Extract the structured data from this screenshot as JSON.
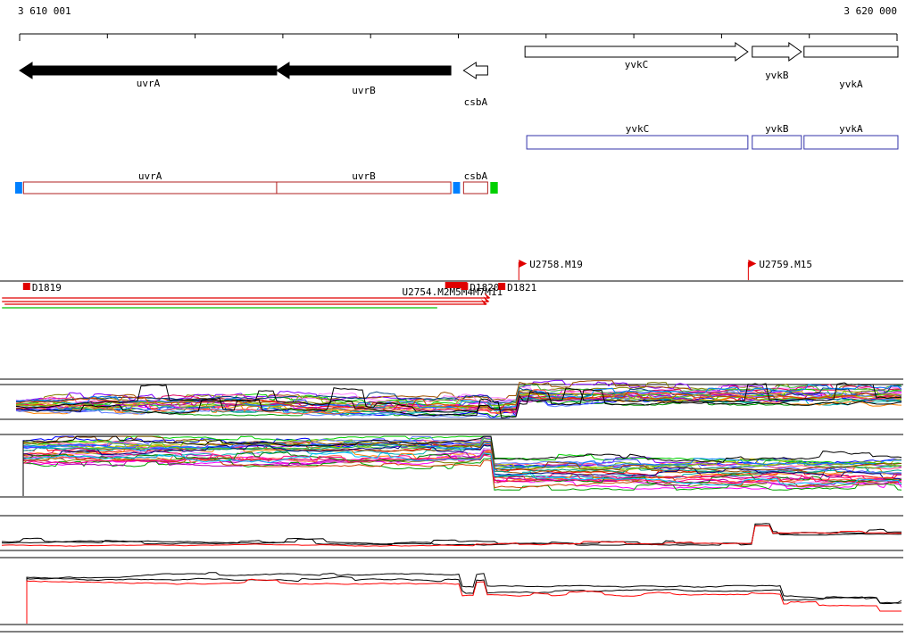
{
  "ruler": {
    "start_label": "3 610 001",
    "end_label": "3 620 000",
    "start_bp": 3610001,
    "end_bp": 3620000,
    "major_ticks": 11
  },
  "genes": [
    {
      "name": "uvrA",
      "start_bp": 3610001,
      "end_bp": 3612930,
      "strand": "-",
      "style": "filled-black",
      "label_dy": 9
    },
    {
      "name": "uvrB",
      "start_bp": 3612930,
      "end_bp": 3614915,
      "strand": "-",
      "style": "filled-black",
      "label_dy": 17
    },
    {
      "name": "csbA",
      "start_bp": 3615060,
      "end_bp": 3615335,
      "strand": "-",
      "style": "outline",
      "label_dy": 30
    },
    {
      "name": "yvkC",
      "start_bp": 3615760,
      "end_bp": 3618300,
      "strand": "+",
      "style": "outline",
      "label_dy": 8
    },
    {
      "name": "yvkB",
      "start_bp": 3618350,
      "end_bp": 3618910,
      "strand": "+",
      "style": "outline",
      "label_dy": 20
    },
    {
      "name": "yvkA",
      "start_bp": 3618940,
      "end_bp": 3620010,
      "strand": "+",
      "style": "outline-noarrow",
      "label_dy": 30
    }
  ],
  "transcripts": [
    {
      "name": "yvkC",
      "start_bp": 3615780,
      "end_bp": 3618300
    },
    {
      "name": "yvkB",
      "start_bp": 3618350,
      "end_bp": 3618910
    },
    {
      "name": "yvkA",
      "start_bp": 3618940,
      "end_bp": 3620010
    }
  ],
  "features": {
    "boxes": [
      {
        "name": "uvrA",
        "start_bp": 3610045,
        "end_bp": 3612930
      },
      {
        "name": "uvrB",
        "start_bp": 3612930,
        "end_bp": 3614915
      },
      {
        "name": "csbA",
        "start_bp": 3615060,
        "end_bp": 3615335
      }
    ],
    "caps": [
      {
        "color_key": "blue",
        "color": "#0080ff",
        "start_bp": 3609950,
        "end_bp": 3610030
      },
      {
        "color_key": "blue",
        "color": "#0080ff",
        "start_bp": 3614940,
        "end_bp": 3615020
      },
      {
        "color_key": "green",
        "color": "#00d000",
        "start_bp": 3615365,
        "end_bp": 3615450
      }
    ],
    "outline_color": "#b22222",
    "transcript_outline_color": "#3333aa"
  },
  "probes": [
    {
      "label": "D1819",
      "bp": 3610050,
      "kind": "box-below"
    },
    {
      "label": "U2754.M2M5M4M7M11",
      "bp": 3614360,
      "kind": "overlap-text",
      "marks_bp": [
        3614850,
        3614895,
        3614940,
        3614985,
        3615030
      ]
    },
    {
      "label": "D1820",
      "bp": 3615040,
      "kind": "box-below"
    },
    {
      "label": "D1821",
      "bp": 3615465,
      "kind": "box-below"
    },
    {
      "label": "U2758.M19",
      "bp": 3615690,
      "kind": "flag-above"
    },
    {
      "label": "U2759.M15",
      "bp": 3618305,
      "kind": "flag-above"
    }
  ],
  "amplicons": [
    {
      "start_bp": 3609800,
      "end_bp": 3615355,
      "color": "#e00000",
      "lane": 0,
      "end_marker": true
    },
    {
      "start_bp": 3609800,
      "end_bp": 3615345,
      "color": "#e00000",
      "lane": 1,
      "end_marker": true
    },
    {
      "start_bp": 3609830,
      "end_bp": 3615320,
      "color": "#e00000",
      "lane": 2,
      "end_marker": true
    },
    {
      "start_bp": 3609800,
      "end_bp": 3614760,
      "color": "#00c000",
      "lane": 3,
      "end_marker": false
    }
  ],
  "chart_data": [
    {
      "type": "line",
      "name": "tiling-signal-track-1",
      "x_unit": "genome_bp",
      "x_range": [
        3610001,
        3620000
      ],
      "y_axis": {
        "visible": false,
        "normalized_range": [
          0,
          1
        ]
      },
      "segments": [
        {
          "from": 3610001,
          "to": 3615350,
          "level": 0.34
        },
        {
          "from": 3615350,
          "to": 3615680,
          "level": 0.26
        },
        {
          "from": 3615680,
          "to": 3620000,
          "level": 0.6
        }
      ],
      "n_series": 26,
      "band_spread": 0.15,
      "noise": 0.05,
      "bump_rate": 0.05,
      "bump_amp": 0.1,
      "black_bump_boost": 3.0,
      "seed": 11,
      "series_colors": [
        "#ff0000",
        "#00a000",
        "#0000ff",
        "#ff00ff",
        "#00b0b0",
        "#808000",
        "#ff8000",
        "#8000ff",
        "#a05000",
        "#00d000",
        "#4040ff",
        "#ff4080",
        "#00a080",
        "#c0c000",
        "#ff80ff",
        "#6080ff",
        "#e00060",
        "#40c040",
        "#004080",
        "#b000b0",
        "#ff6040",
        "#80c000",
        "#0080ff",
        "#d04000",
        "#000000",
        "#000000"
      ]
    },
    {
      "type": "line",
      "name": "tiling-signal-track-2",
      "x_unit": "genome_bp",
      "x_range": [
        3610001,
        3620000
      ],
      "y_axis": {
        "visible": false,
        "normalized_range": [
          0,
          1
        ]
      },
      "segments": [
        {
          "from": 3610001,
          "to": 3615250,
          "level": 0.72
        },
        {
          "from": 3615250,
          "to": 3615390,
          "level": 0.8
        },
        {
          "from": 3615390,
          "to": 3620000,
          "level": 0.38
        }
      ],
      "n_series": 30,
      "band_spread": 0.2,
      "noise": 0.03,
      "bump_rate": 0.03,
      "bump_amp": 0.06,
      "seed": 23,
      "series_colors": [
        "#ff00ff",
        "#c000c0",
        "#ff0000",
        "#00a000",
        "#0000ff",
        "#00b0b0",
        "#808000",
        "#ff8000",
        "#8000ff",
        "#a05000",
        "#00d000",
        "#4040ff",
        "#ff4080",
        "#00a080",
        "#c0c000",
        "#ff80ff",
        "#6080ff",
        "#e00060",
        "#40c040",
        "#000080",
        "#b000b0",
        "#ff6040",
        "#80c000",
        "#0080ff",
        "#d04000",
        "#008000",
        "#ff0080",
        "#00c0ff",
        "#884400",
        "#000000"
      ]
    },
    {
      "type": "line",
      "name": "probe-signal-track-1",
      "x_unit": "genome_bp",
      "x_range": [
        3610001,
        3620000
      ],
      "y_axis": {
        "visible": false,
        "normalized_range": [
          0,
          1
        ]
      },
      "segments": [
        {
          "from": 3610001,
          "to": 3618350,
          "level": 0.32
        },
        {
          "from": 3618350,
          "to": 3618560,
          "level": 0.74
        },
        {
          "from": 3618560,
          "to": 3620000,
          "level": 0.56
        }
      ],
      "series_offsets": [
        0.06,
        0.03,
        -0.02
      ],
      "noise": 0.018,
      "bump_rate": 0.025,
      "bump_amp": 0.07,
      "seed": 5,
      "series_colors": [
        "#000000",
        "#000000",
        "#ff0000"
      ]
    },
    {
      "type": "line",
      "name": "probe-signal-track-2",
      "x_unit": "genome_bp",
      "x_range": [
        3610001,
        3620000
      ],
      "y_axis": {
        "visible": false,
        "normalized_range": [
          0,
          1
        ]
      },
      "segments": [
        {
          "from": 3610001,
          "to": 3615020,
          "level": 0.84
        },
        {
          "from": 3615020,
          "to": 3615180,
          "level": 0.62
        },
        {
          "from": 3615180,
          "to": 3615330,
          "level": 0.86
        },
        {
          "from": 3615330,
          "to": 3618700,
          "level": 0.62
        },
        {
          "from": 3618700,
          "to": 3619780,
          "level": 0.44
        },
        {
          "from": 3619780,
          "to": 3620000,
          "level": 0.34
        }
      ],
      "series_offsets": [
        0.05,
        0.02,
        -0.03
      ],
      "noise": 0.02,
      "bump_rate": 0.02,
      "bump_amp": 0.05,
      "seed": 9,
      "series_colors": [
        "#000000",
        "#000000",
        "#ff0000"
      ]
    }
  ]
}
